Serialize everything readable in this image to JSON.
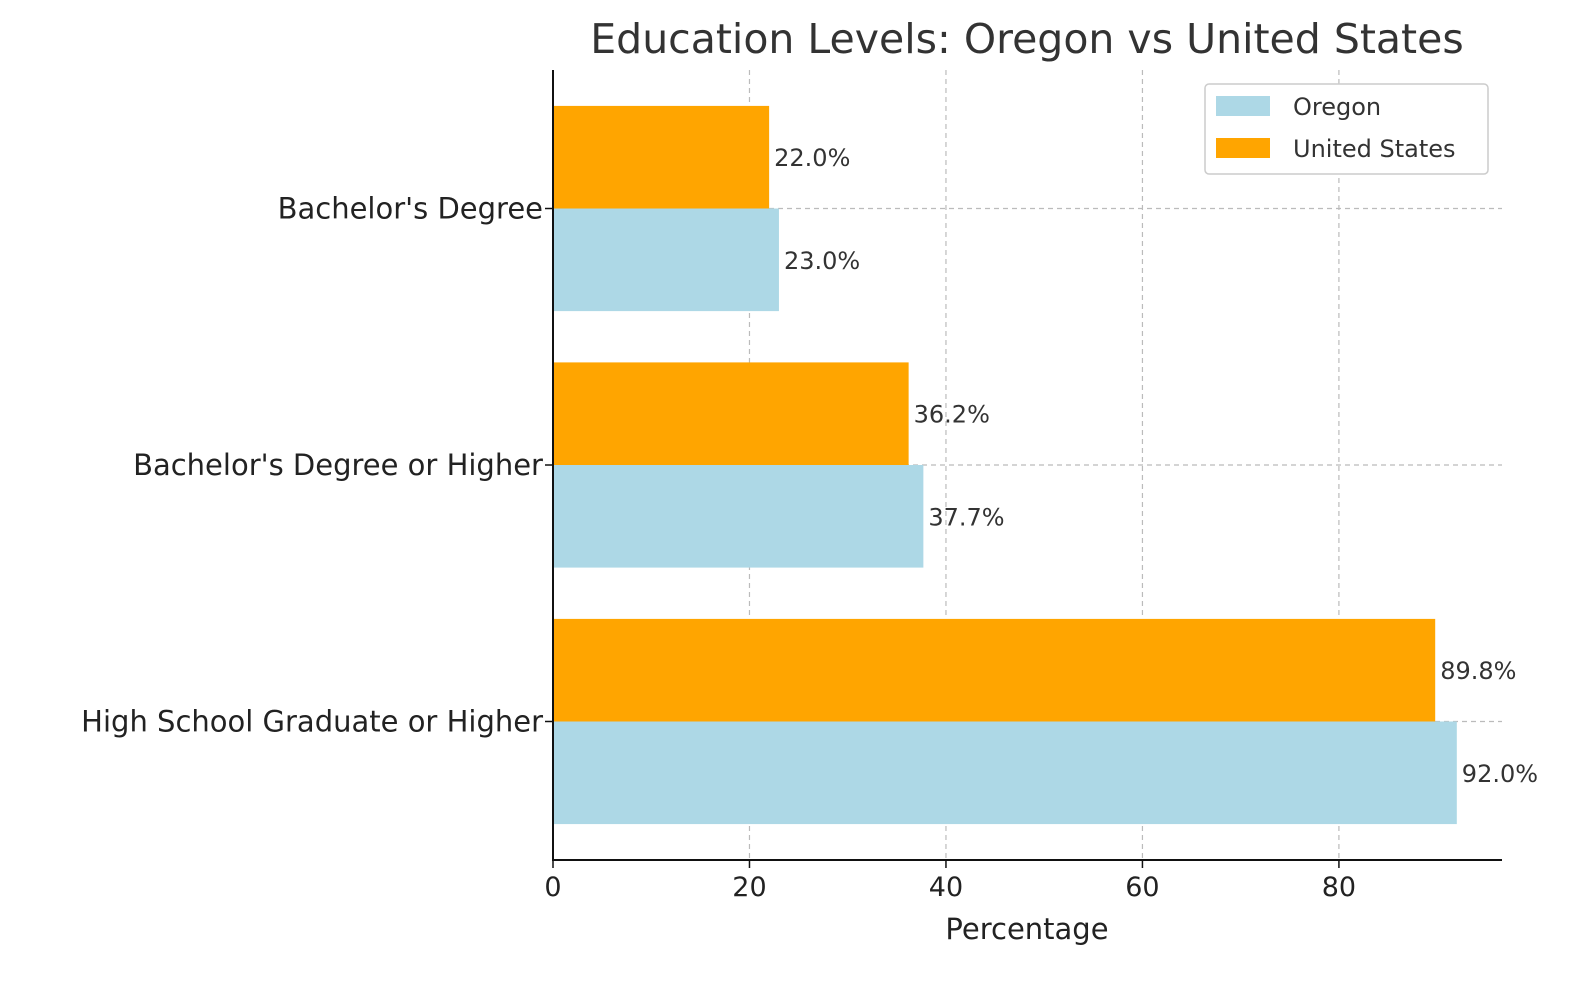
{
  "chart_data": {
    "type": "bar",
    "orientation": "horizontal",
    "title": "Education Levels: Oregon vs United States",
    "xlabel": "Percentage",
    "ylabel": "",
    "categories": [
      "High School Graduate or Higher",
      "Bachelor's Degree or Higher",
      "Bachelor's Degree"
    ],
    "series": [
      {
        "name": "Oregon",
        "color": "#ADD8E6",
        "values": [
          92.0,
          37.7,
          23.0
        ],
        "labels": [
          "92.0%",
          "37.7%",
          "23.0%"
        ]
      },
      {
        "name": "United States",
        "color": "#FFA500",
        "values": [
          89.8,
          36.2,
          22.0
        ],
        "labels": [
          "89.8%",
          "36.2%",
          "22.0%"
        ]
      }
    ],
    "xlim": [
      0,
      96.6
    ],
    "xticks": [
      0,
      20,
      40,
      60,
      80
    ],
    "xtick_labels": [
      "0",
      "20",
      "40",
      "60",
      "80"
    ],
    "grid": true,
    "legend": "top-right"
  }
}
